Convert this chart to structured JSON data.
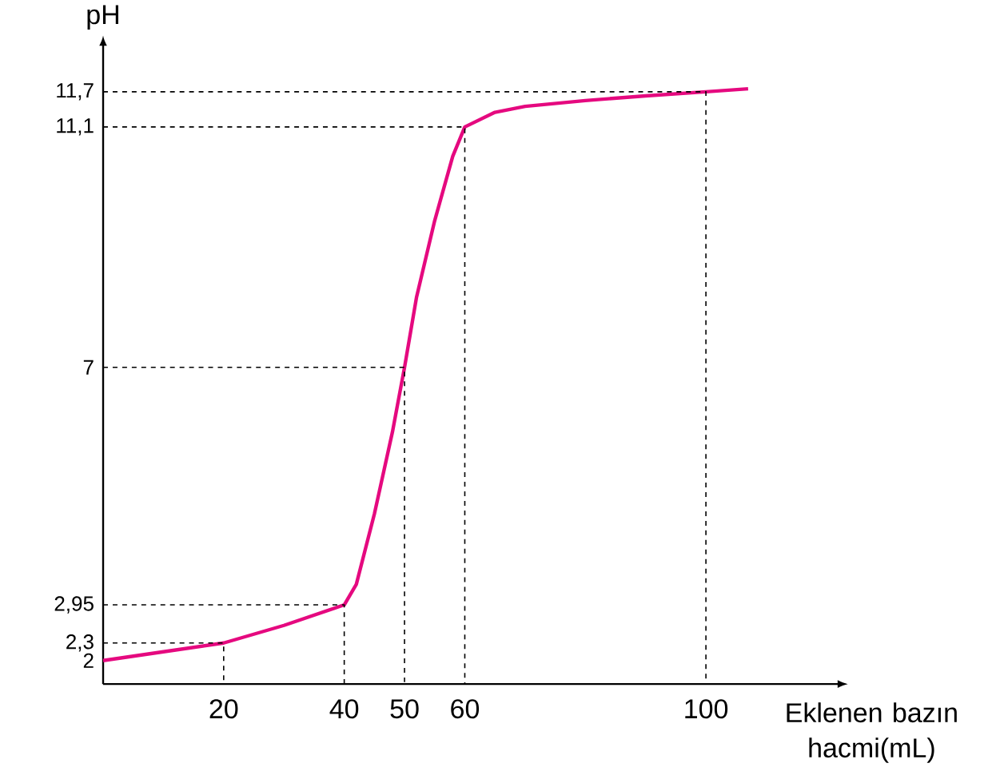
{
  "chart_data": {
    "type": "line",
    "xlabel": "Eklenen bazın hacmi(mL)",
    "ylabel": "pH",
    "xlim": [
      0,
      122
    ],
    "ylim": [
      1.6,
      12.5
    ],
    "xticks": [
      20,
      40,
      50,
      60,
      100
    ],
    "yticks": [
      2,
      {
        "value": 2.3,
        "label": "2,3"
      },
      {
        "value": 2.95,
        "label": "2,95"
      },
      7,
      {
        "value": 11.1,
        "label": "11,1"
      },
      {
        "value": 11.7,
        "label": "11,7"
      }
    ],
    "series": [
      {
        "color": "#e5097f",
        "line_style": "solid",
        "x": [
          0,
          10,
          20,
          30,
          40,
          42,
          45,
          48,
          50,
          52,
          55,
          58,
          60,
          65,
          70,
          80,
          90,
          100,
          107
        ],
        "values": [
          2,
          2.15,
          2.3,
          2.6,
          2.95,
          3.3,
          4.5,
          5.9,
          7,
          8.2,
          9.5,
          10.6,
          11.1,
          11.35,
          11.45,
          11.55,
          11.63,
          11.7,
          11.75
        ]
      },
      {
        "color": "#000000",
        "line_style": "dashed",
        "x": [
          0,
          20,
          20
        ],
        "values": [
          2.3,
          2.3,
          1.6
        ]
      },
      {
        "color": "#000000",
        "line_style": "dashed",
        "x": [
          0,
          40,
          40
        ],
        "values": [
          2.95,
          2.95,
          1.6
        ]
      },
      {
        "color": "#000000",
        "line_style": "dashed",
        "x": [
          0,
          50,
          50
        ],
        "values": [
          7,
          7,
          1.6
        ]
      },
      {
        "color": "#000000",
        "line_style": "dashed",
        "x": [
          0,
          60,
          60
        ],
        "values": [
          11.1,
          11.1,
          1.6
        ]
      },
      {
        "color": "#000000",
        "line_style": "dashed",
        "x": [
          0,
          100,
          100
        ],
        "values": [
          11.7,
          11.7,
          1.6
        ]
      }
    ]
  }
}
